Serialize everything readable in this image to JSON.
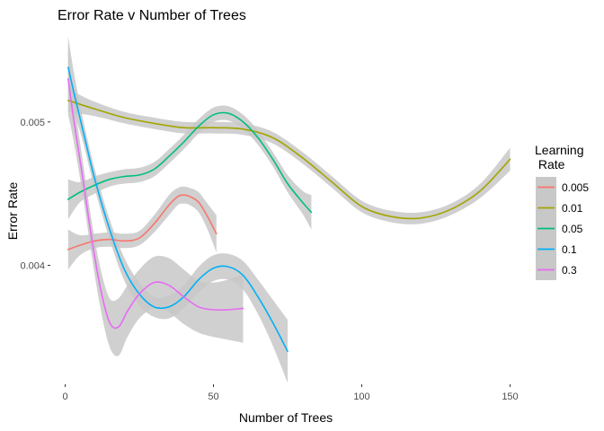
{
  "chart_data": {
    "type": "line",
    "title": "Error Rate v Number of Trees",
    "xlabel": "Number of Trees",
    "ylabel": "Error Rate",
    "xlim": [
      -5,
      155
    ],
    "ylim": [
      0.00317,
      0.0056
    ],
    "x_ticks": [
      0,
      50,
      100,
      150
    ],
    "x_tick_labels": [
      "0",
      "50",
      "100",
      "150"
    ],
    "y_ticks": [
      0.004,
      0.005
    ],
    "y_tick_labels": [
      "0.004",
      "0.005"
    ],
    "grid": false,
    "legend": {
      "title_lines": [
        "Learning",
        " Rate"
      ],
      "position": "right"
    },
    "confidence_band_color": "#c8c8c8",
    "series": [
      {
        "name": "0.005",
        "color": "#F8766D",
        "x": [
          1,
          5,
          10,
          15,
          20,
          25,
          30,
          35,
          38,
          40,
          42,
          45,
          48,
          51
        ],
        "y": [
          0.00411,
          0.00414,
          0.00417,
          0.00418,
          0.00417,
          0.00419,
          0.00429,
          0.00442,
          0.00448,
          0.00449,
          0.00448,
          0.00444,
          0.00434,
          0.00422
        ],
        "band": [
          0.00014,
          7e-05,
          5e-05,
          5e-05,
          5e-05,
          5e-05,
          6e-05,
          7e-05,
          6e-05,
          6e-05,
          6e-05,
          7e-05,
          9e-05,
          0.00013
        ]
      },
      {
        "name": "0.01",
        "color": "#A3A500",
        "x": [
          1,
          10,
          20,
          30,
          40,
          50,
          60,
          70,
          80,
          90,
          100,
          110,
          120,
          130,
          140,
          150
        ],
        "y": [
          0.00515,
          0.00509,
          0.00503,
          0.00499,
          0.00496,
          0.00496,
          0.00495,
          0.00489,
          0.00475,
          0.00458,
          0.00441,
          0.00434,
          0.00433,
          0.00439,
          0.00452,
          0.00474
        ],
        "band": [
          8e-05,
          5e-05,
          4e-05,
          4e-05,
          4e-05,
          4e-05,
          4e-05,
          4e-05,
          4e-05,
          4e-05,
          4e-05,
          4e-05,
          4e-05,
          4e-05,
          5e-05,
          8e-05
        ]
      },
      {
        "name": "0.05",
        "color": "#00BF7D",
        "x": [
          1,
          5,
          10,
          15,
          20,
          25,
          30,
          35,
          40,
          45,
          50,
          55,
          60,
          65,
          70,
          75,
          80,
          83
        ],
        "y": [
          0.00446,
          0.00451,
          0.00456,
          0.0046,
          0.00462,
          0.00463,
          0.00467,
          0.00476,
          0.00486,
          0.00497,
          0.00505,
          0.00506,
          0.005,
          0.00489,
          0.00474,
          0.00457,
          0.00444,
          0.00437
        ],
        "band": [
          0.00014,
          7e-05,
          6e-05,
          5e-05,
          5e-05,
          5e-05,
          5e-05,
          5e-05,
          5e-05,
          5e-05,
          5e-05,
          5e-05,
          5e-05,
          5e-05,
          5e-05,
          6e-05,
          8e-05,
          0.00012
        ]
      },
      {
        "name": "0.1",
        "color": "#00B0F6",
        "x": [
          1,
          3,
          6,
          10,
          15,
          20,
          25,
          30,
          35,
          40,
          45,
          50,
          55,
          60,
          65,
          70,
          75
        ],
        "y": [
          0.00538,
          0.0052,
          0.00494,
          0.0046,
          0.00425,
          0.00397,
          0.0038,
          0.00371,
          0.00371,
          0.00378,
          0.0039,
          0.00398,
          0.00399,
          0.00393,
          0.00378,
          0.0036,
          0.0034
        ],
        "band": [
          0.00022,
          0.00014,
          8e-05,
          7e-05,
          7e-05,
          8e-05,
          8e-05,
          7e-05,
          8e-05,
          8e-05,
          9e-05,
          9e-05,
          9e-05,
          0.0001,
          0.00012,
          0.00016,
          0.00022
        ]
      },
      {
        "name": "0.3",
        "color": "#E76BF3",
        "x": [
          1,
          3,
          6,
          9,
          12,
          15,
          18,
          21,
          25,
          30,
          35,
          40,
          45,
          50,
          55,
          60
        ],
        "y": [
          0.0053,
          0.005,
          0.0046,
          0.00418,
          0.00383,
          0.0036,
          0.00357,
          0.00368,
          0.0038,
          0.00388,
          0.00386,
          0.00378,
          0.00371,
          0.00369,
          0.00369,
          0.0037
        ],
        "band": [
          0.00025,
          0.00015,
          0.00012,
          0.00012,
          0.00014,
          0.00017,
          0.0002,
          0.00018,
          0.00017,
          0.00018,
          0.00019,
          0.00019,
          0.00018,
          0.00019,
          0.00021,
          0.00024
        ]
      }
    ]
  }
}
